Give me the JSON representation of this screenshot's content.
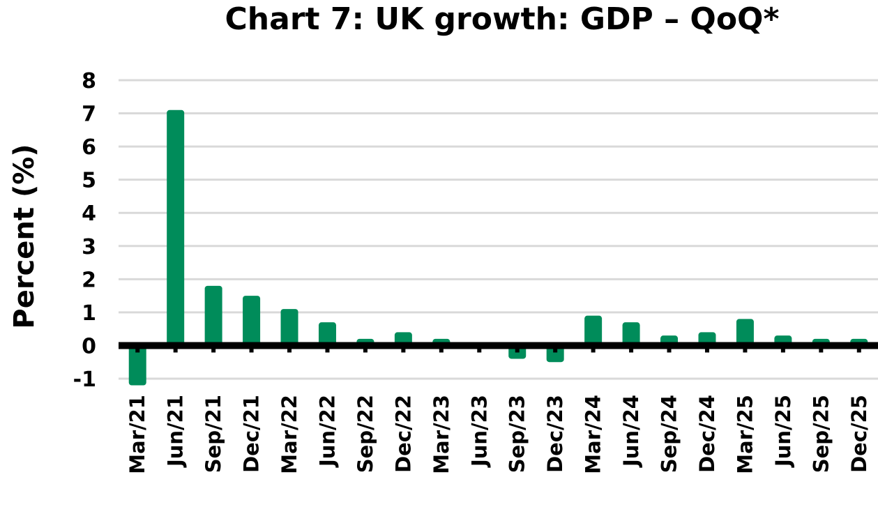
{
  "chart_data": {
    "type": "bar",
    "title": "Chart 7: UK growth: GDP – QoQ*",
    "xlabel": "",
    "ylabel": "Percent (%)",
    "ylim": [
      -1,
      8
    ],
    "yticks": [
      "8",
      "7",
      "6",
      "5",
      "4",
      "3",
      "2",
      "1",
      "0",
      "-1"
    ],
    "grid": true,
    "bar_color": "#008c5a",
    "categories": [
      "Mar/21",
      "Jun/21",
      "Sep/21",
      "Dec/21",
      "Mar/22",
      "Jun/22",
      "Sep/22",
      "Dec/22",
      "Mar/23",
      "Jun/23",
      "Sep/23",
      "Dec/23",
      "Mar/24",
      "Jun/24",
      "Sep/24",
      "Dec/24",
      "Mar/25",
      "Jun/25",
      "Sep/25",
      "Dec/25"
    ],
    "values": [
      -1.2,
      7.1,
      1.8,
      1.5,
      1.1,
      0.7,
      0.2,
      0.4,
      0.2,
      0.0,
      -0.4,
      -0.5,
      0.9,
      0.7,
      0.3,
      0.4,
      0.8,
      0.3,
      0.2,
      0.2
    ]
  }
}
